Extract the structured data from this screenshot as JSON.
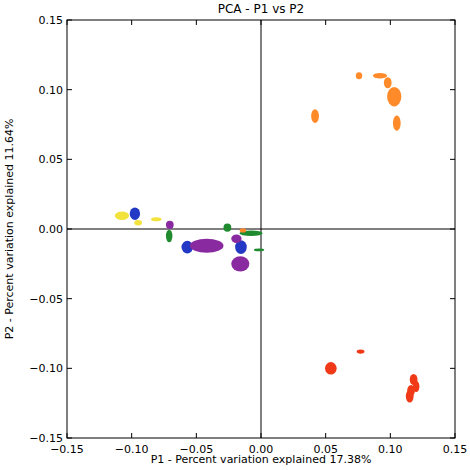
{
  "chart_data": {
    "type": "scatter",
    "title": "PCA - P1 vs P2",
    "x_label": "P1 - Percent variation explained 17.38%",
    "y_label": "P2 - Percent variation explained 11.64%",
    "marker": "ellipse",
    "grid": false,
    "xlim": [
      -0.15,
      0.15
    ],
    "ylim": [
      -0.15,
      0.15
    ],
    "xticks": [
      {
        "value": -0.15,
        "label": "−0.15"
      },
      {
        "value": -0.1,
        "label": "−0.10"
      },
      {
        "value": -0.05,
        "label": "−0.05"
      },
      {
        "value": 0.0,
        "label": "0.00"
      },
      {
        "value": 0.05,
        "label": "0.05"
      },
      {
        "value": 0.1,
        "label": "0.10"
      },
      {
        "value": 0.15,
        "label": "0.15"
      }
    ],
    "yticks": [
      {
        "value": -0.15,
        "label": "−0.15"
      },
      {
        "value": -0.1,
        "label": "−0.10"
      },
      {
        "value": -0.05,
        "label": "−0.05"
      },
      {
        "value": 0.0,
        "label": "0.00"
      },
      {
        "value": 0.05,
        "label": "0.05"
      },
      {
        "value": 0.1,
        "label": "0.10"
      },
      {
        "value": 0.15,
        "label": "0.15"
      }
    ],
    "series": [
      {
        "color": "#f2e23c",
        "x": [
          -0.1075,
          -0.095,
          -0.081
        ],
        "values": [
          0.0095,
          0.0045,
          0.007
        ],
        "width": [
          0.011,
          0.006,
          0.008
        ],
        "height": [
          0.006,
          0.004,
          0.003
        ]
      },
      {
        "color": "#2338c4",
        "x": [
          -0.0975,
          -0.057,
          -0.0155
        ],
        "values": [
          0.011,
          -0.013,
          -0.013
        ],
        "width": [
          0.008,
          0.009,
          0.009
        ],
        "height": [
          0.009,
          0.009,
          0.01
        ]
      },
      {
        "color": "#1f8a2e",
        "x": [
          -0.071,
          -0.026,
          -0.0077,
          -0.0015
        ],
        "values": [
          -0.005,
          0.001,
          -0.003,
          -0.015
        ],
        "width": [
          0.005,
          0.006,
          0.018,
          0.008
        ],
        "height": [
          0.009,
          0.006,
          0.004,
          0.002
        ]
      },
      {
        "color": "#8a2aa0",
        "x": [
          -0.0705,
          -0.042,
          -0.019,
          -0.016
        ],
        "values": [
          0.003,
          -0.012,
          -0.007,
          -0.025
        ],
        "width": [
          0.006,
          0.026,
          0.008,
          0.014
        ],
        "height": [
          0.006,
          0.01,
          0.006,
          0.011
        ]
      },
      {
        "color": "#ff8a2a",
        "x": [
          0.0418,
          0.0758,
          0.092,
          0.098,
          0.103,
          0.105,
          -0.014
        ],
        "values": [
          0.081,
          0.11,
          0.11,
          0.105,
          0.095,
          0.076,
          -0.001
        ],
        "width": [
          0.006,
          0.005,
          0.011,
          0.006,
          0.011,
          0.006,
          0.005
        ],
        "height": [
          0.01,
          0.005,
          0.004,
          0.008,
          0.014,
          0.011,
          0.003
        ]
      },
      {
        "color": "#f03a17",
        "x": [
          0.054,
          0.077,
          0.118,
          0.116,
          0.115,
          0.12
        ],
        "values": [
          -0.1,
          -0.088,
          -0.108,
          -0.116,
          -0.12,
          -0.113
        ],
        "width": [
          0.009,
          0.006,
          0.006,
          0.006,
          0.006,
          0.005
        ],
        "height": [
          0.009,
          0.003,
          0.008,
          0.008,
          0.009,
          0.008
        ]
      }
    ]
  }
}
